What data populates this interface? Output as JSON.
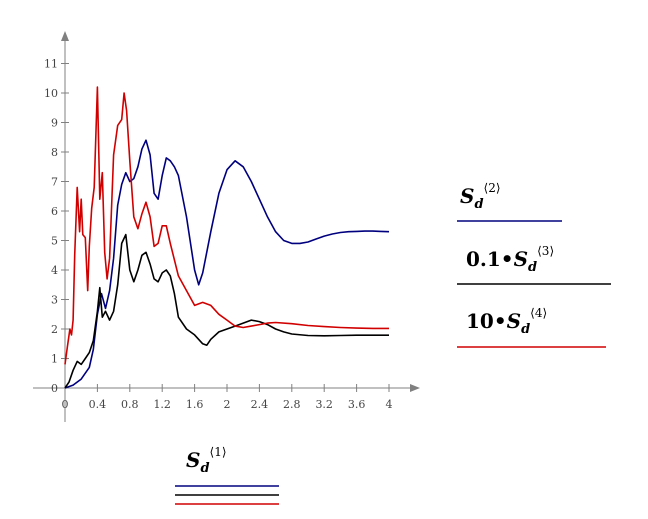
{
  "chart_data": {
    "type": "line",
    "title": "",
    "xlabel": "",
    "ylabel": "",
    "xlim": [
      0,
      4
    ],
    "ylim": [
      0,
      11.6
    ],
    "x_ticks": [
      "0",
      "0.4",
      "0.8",
      "1.2",
      "1.6",
      "2",
      "2.4",
      "2.8",
      "3.2",
      "3.6",
      "4"
    ],
    "y_ticks": [
      "0",
      "1",
      "2",
      "3",
      "4",
      "5",
      "6",
      "7",
      "8",
      "9",
      "10",
      "11"
    ],
    "grid": false,
    "series": [
      {
        "color": "#00007f",
        "x": [
          0,
          0.1,
          0.2,
          0.3,
          0.35,
          0.4,
          0.45,
          0.5,
          0.55,
          0.6,
          0.65,
          0.7,
          0.75,
          0.8,
          0.85,
          0.9,
          0.95,
          1.0,
          1.05,
          1.1,
          1.15,
          1.2,
          1.25,
          1.3,
          1.35,
          1.4,
          1.5,
          1.6,
          1.65,
          1.7,
          1.8,
          1.9,
          2.0,
          2.1,
          2.2,
          2.3,
          2.4,
          2.5,
          2.6,
          2.7,
          2.8,
          2.9,
          3.0,
          3.1,
          3.2,
          3.3,
          3.4,
          3.5,
          3.6,
          3.7,
          3.8,
          3.9,
          4.0
        ],
        "values": [
          0,
          0.1,
          0.3,
          0.7,
          1.3,
          2.5,
          3.2,
          2.7,
          3.3,
          4.4,
          6.2,
          6.9,
          7.3,
          7.0,
          7.1,
          7.5,
          8.1,
          8.4,
          7.9,
          6.6,
          6.4,
          7.2,
          7.8,
          7.7,
          7.5,
          7.2,
          5.8,
          4.0,
          3.5,
          3.9,
          5.3,
          6.6,
          7.4,
          7.7,
          7.5,
          7.0,
          6.4,
          5.8,
          5.3,
          5.0,
          4.9,
          4.9,
          4.95,
          5.05,
          5.15,
          5.22,
          5.27,
          5.3,
          5.31,
          5.32,
          5.32,
          5.31,
          5.3
        ]
      },
      {
        "color": "#000000",
        "x": [
          0,
          0.05,
          0.1,
          0.15,
          0.2,
          0.25,
          0.3,
          0.35,
          0.4,
          0.43,
          0.46,
          0.5,
          0.55,
          0.6,
          0.65,
          0.7,
          0.75,
          0.8,
          0.85,
          0.9,
          0.95,
          1.0,
          1.05,
          1.1,
          1.15,
          1.2,
          1.25,
          1.3,
          1.35,
          1.4,
          1.5,
          1.6,
          1.7,
          1.75,
          1.8,
          1.9,
          2.0,
          2.1,
          2.2,
          2.3,
          2.4,
          2.5,
          2.6,
          2.7,
          2.8,
          3.0,
          3.2,
          3.4,
          3.6,
          3.8,
          4.0
        ],
        "values": [
          0,
          0.2,
          0.6,
          0.9,
          0.8,
          1.0,
          1.2,
          1.6,
          2.6,
          3.4,
          2.4,
          2.6,
          2.3,
          2.6,
          3.5,
          4.9,
          5.2,
          4.0,
          3.6,
          4.0,
          4.5,
          4.6,
          4.2,
          3.7,
          3.6,
          3.9,
          4.0,
          3.8,
          3.2,
          2.4,
          2.0,
          1.8,
          1.5,
          1.45,
          1.65,
          1.9,
          2.0,
          2.1,
          2.2,
          2.3,
          2.25,
          2.15,
          2.0,
          1.9,
          1.83,
          1.78,
          1.77,
          1.78,
          1.79,
          1.79,
          1.79
        ]
      },
      {
        "color": "#d10000",
        "x": [
          0,
          0.03,
          0.06,
          0.08,
          0.1,
          0.12,
          0.15,
          0.18,
          0.2,
          0.22,
          0.25,
          0.28,
          0.3,
          0.33,
          0.36,
          0.4,
          0.43,
          0.46,
          0.49,
          0.52,
          0.55,
          0.6,
          0.65,
          0.7,
          0.73,
          0.76,
          0.8,
          0.85,
          0.9,
          0.95,
          1.0,
          1.05,
          1.1,
          1.15,
          1.2,
          1.25,
          1.3,
          1.4,
          1.5,
          1.6,
          1.7,
          1.8,
          1.9,
          2.0,
          2.1,
          2.2,
          2.3,
          2.4,
          2.5,
          2.6,
          2.8,
          3.0,
          3.2,
          3.4,
          3.6,
          3.8,
          4.0
        ],
        "values": [
          0.8,
          1.4,
          2.0,
          1.8,
          2.3,
          4.5,
          6.8,
          5.3,
          6.4,
          5.2,
          5.1,
          3.3,
          4.8,
          6.1,
          6.8,
          10.2,
          6.4,
          7.3,
          4.6,
          3.7,
          4.4,
          7.9,
          8.9,
          9.1,
          10.0,
          9.4,
          7.7,
          5.8,
          5.4,
          5.9,
          6.3,
          5.8,
          4.8,
          4.9,
          5.5,
          5.5,
          4.9,
          3.8,
          3.3,
          2.8,
          2.9,
          2.8,
          2.5,
          2.3,
          2.1,
          2.05,
          2.1,
          2.15,
          2.2,
          2.22,
          2.18,
          2.12,
          2.08,
          2.05,
          2.03,
          2.02,
          2.02
        ]
      }
    ]
  },
  "legend": {
    "right": [
      {
        "pre": "",
        "sym": "S",
        "sub": "d",
        "sup": "⟨2⟩",
        "color": "#00007f"
      },
      {
        "pre": "0.1•",
        "sym": "S",
        "sub": "d",
        "sup": "⟨3⟩",
        "color": "#000000"
      },
      {
        "pre": "10•",
        "sym": "S",
        "sub": "d",
        "sup": "⟨4⟩",
        "color": "#d10000"
      }
    ],
    "bottom": {
      "sym": "S",
      "sub": "d",
      "sup": "⟨1⟩",
      "colors": [
        "#00007f",
        "#000000",
        "#d10000"
      ]
    }
  },
  "axis_color": "#808080"
}
